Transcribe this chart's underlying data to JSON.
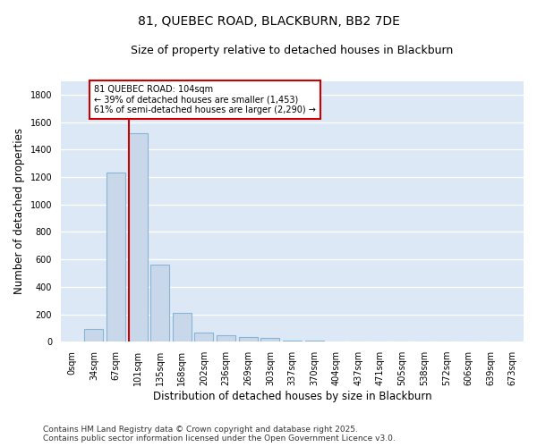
{
  "title": "81, QUEBEC ROAD, BLACKBURN, BB2 7DE",
  "subtitle": "Size of property relative to detached houses in Blackburn",
  "xlabel": "Distribution of detached houses by size in Blackburn",
  "ylabel": "Number of detached properties",
  "footer_line1": "Contains HM Land Registry data © Crown copyright and database right 2025.",
  "footer_line2": "Contains public sector information licensed under the Open Government Licence v3.0.",
  "annotation_title": "81 QUEBEC ROAD: 104sqm",
  "annotation_line1": "← 39% of detached houses are smaller (1,453)",
  "annotation_line2": "61% of semi-detached houses are larger (2,290) →",
  "property_size_idx": 3,
  "bar_labels": [
    "0sqm",
    "34sqm",
    "67sqm",
    "101sqm",
    "135sqm",
    "168sqm",
    "202sqm",
    "236sqm",
    "269sqm",
    "303sqm",
    "337sqm",
    "370sqm",
    "404sqm",
    "437sqm",
    "471sqm",
    "505sqm",
    "538sqm",
    "572sqm",
    "606sqm",
    "639sqm",
    "673sqm"
  ],
  "bar_values": [
    0,
    90,
    1230,
    1520,
    560,
    210,
    65,
    45,
    35,
    28,
    8,
    5,
    3,
    2,
    1,
    0,
    0,
    0,
    0,
    0,
    0
  ],
  "bar_color": "#c8d8ea",
  "bar_edge_color": "#8ab4d4",
  "red_line_bar_idx": 3,
  "annotation_box_color": "#cc0000",
  "ylim": [
    0,
    1900
  ],
  "yticks": [
    0,
    200,
    400,
    600,
    800,
    1000,
    1200,
    1400,
    1600,
    1800
  ],
  "background_color": "#dce8f5",
  "grid_color": "#ffffff",
  "fig_background": "#ffffff",
  "title_fontsize": 10,
  "subtitle_fontsize": 9,
  "axis_label_fontsize": 8.5,
  "tick_fontsize": 7,
  "footer_fontsize": 6.5
}
